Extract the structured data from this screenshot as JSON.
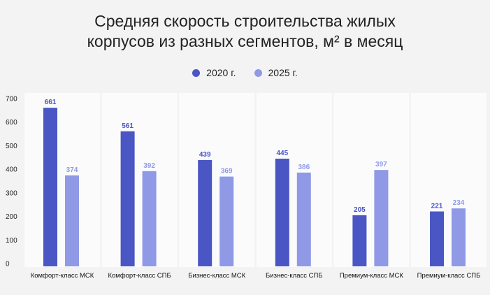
{
  "chart_data": {
    "type": "bar",
    "title_lines": [
      "Средняя скорость строительства жилых",
      "корпусов из разных сегментов, м² в месяц"
    ],
    "categories": [
      "Комфорт-класс МСК",
      "Комфорт-класс СПБ",
      "Бизнес-класс МСК",
      "Бизнес-класс СПБ",
      "Премиум-класс МСК",
      "Премиум-класс СПБ"
    ],
    "series": [
      {
        "name": "2020 г.",
        "color": "#4a56c4",
        "values": [
          661,
          561,
          439,
          445,
          205,
          221
        ]
      },
      {
        "name": "2025 г.",
        "color": "#8f99e6",
        "values": [
          374,
          392,
          369,
          386,
          397,
          234
        ]
      }
    ],
    "yticks": [
      0,
      100,
      200,
      300,
      400,
      500,
      600,
      700
    ],
    "ylim": [
      0,
      700
    ],
    "legend_position": "top-center",
    "xlabel": "",
    "ylabel": ""
  }
}
